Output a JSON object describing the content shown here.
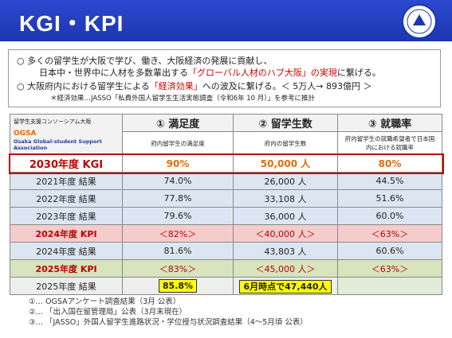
{
  "header": {
    "title": "KGI・KPI"
  },
  "intro": {
    "bullet1": {
      "line1": "多くの留学生が大阪で学び、働き、大阪経済の発展に貢献し、",
      "line2_a": "日本中・世界中に人材を多数輩出する",
      "line2_b": "「グローバル人材のハブ大阪」の実現",
      "line2_c": "に繋げる。"
    },
    "bullet2": {
      "a": "大阪府内における留学生による",
      "b": "「経済効果」",
      "c": "への波及に繋げる。＜ 5万人→ 893億円 ＞"
    },
    "note": "＊経済効果…JASSO「私費外国人留学生生活実態調査（令和6年 10 月）」を参考に推計"
  },
  "table": {
    "org": {
      "name": "留学生支援コンソーシアム大阪",
      "abbr": "OGSA",
      "full": "Osaka Global-student Support Association"
    },
    "columns": [
      {
        "title": "① 満足度",
        "desc": "府内留学生の満足度"
      },
      {
        "title": "② 留学生数",
        "desc": "府内の留学生数"
      },
      {
        "title": "③ 就職率",
        "desc": "府内留学生の就職希望者で日本国内における就職率"
      }
    ],
    "rows": [
      [
        "2030年度 KGI",
        "90%",
        "50,000 人",
        "80%"
      ],
      [
        "2021年度 結果",
        "74.0%",
        "26,000 人",
        "44.5%"
      ],
      [
        "2022年度 結果",
        "77.8%",
        "33,108 人",
        "51.6%"
      ],
      [
        "2023年度 結果",
        "79.6%",
        "36,000 人",
        "60.0%"
      ],
      [
        "2024年度 KPI",
        "＜82%＞",
        "＜40,000 人＞",
        "＜63%＞"
      ],
      [
        "2024年度 結果",
        "81.6%",
        "43,803 人",
        "60.6%"
      ],
      [
        "2025年度 KPI",
        "＜83%＞",
        "＜45,000 人＞",
        "＜63%＞"
      ],
      [
        "2025年度 結果",
        "85.8%",
        "6月時点で47,440人"
      ]
    ]
  },
  "footnotes": [
    "①… OGSAアンケート調査結果（3月 公表）",
    "②… 「出入国在留管理局」公表（3月末現在）",
    "③… 「JASSO」外国人留学生進路状況・学位授与状況調査結果（4～5月頃 公表）"
  ]
}
